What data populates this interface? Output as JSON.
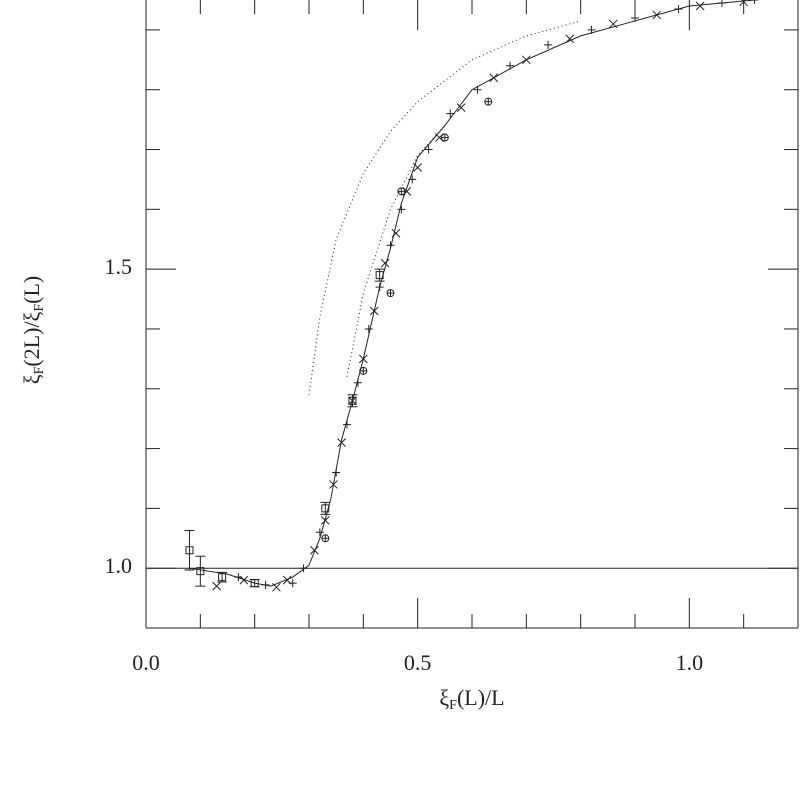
{
  "chart_data": {
    "type": "scatter",
    "xlabel": [
      "ξ",
      "F",
      "(L)/L"
    ],
    "ylabel": [
      "ξ",
      "F",
      "(2L)/ξ",
      "F",
      "(L)"
    ],
    "xlim": [
      0,
      1.2
    ],
    "ylim": [
      0.9,
      1.95
    ],
    "xticks": [
      {
        "value": 0,
        "label": "0.0"
      },
      {
        "value": 0.5,
        "label": "0.5"
      },
      {
        "value": 1,
        "label": "1.0"
      }
    ],
    "yticks": [
      {
        "value": 1,
        "label": "1.0"
      },
      {
        "value": 1.5,
        "label": "1.5"
      }
    ],
    "xminor": [
      0.1,
      0.2,
      0.3,
      0.4,
      0.6,
      0.7,
      0.8,
      0.9,
      1.1
    ],
    "yminor": [
      1.1,
      1.2,
      1.3,
      1.4,
      1.6,
      1.7,
      1.8,
      1.9
    ],
    "reference_line": 1,
    "color": "#222222",
    "series": [
      {
        "mode": "solid",
        "x": [
          0.08,
          0.15,
          0.2,
          0.23,
          0.27,
          0.3,
          0.32,
          0.34,
          0.36,
          0.38,
          0.4,
          0.43,
          0.45,
          0.47,
          0.5,
          0.55,
          0.6,
          0.65,
          0.7,
          0.8,
          0.9,
          1.0,
          1.12
        ],
        "values": [
          1.0,
          0.99,
          0.975,
          0.97,
          0.985,
          1.005,
          1.05,
          1.115,
          1.215,
          1.28,
          1.35,
          1.47,
          1.535,
          1.61,
          1.687,
          1.74,
          1.8,
          1.825,
          1.85,
          1.89,
          1.915,
          1.94,
          1.95
        ]
      },
      {
        "mode": "dotted",
        "x": [
          0.3,
          0.32,
          0.35,
          0.4,
          0.45,
          0.5,
          0.6,
          0.7,
          0.8
        ],
        "values": [
          1.29,
          1.42,
          1.55,
          1.66,
          1.73,
          1.78,
          1.85,
          1.89,
          1.915
        ]
      },
      {
        "mode": "dotted",
        "x": [
          0.37,
          0.4,
          0.45,
          0.5,
          0.55
        ],
        "values": [
          1.32,
          1.46,
          1.6,
          1.69,
          1.74
        ]
      },
      {
        "mode": "plus",
        "x": [
          0.17,
          0.22,
          0.27,
          0.29,
          0.32,
          0.35,
          0.37,
          0.39,
          0.41,
          0.43,
          0.45,
          0.47,
          0.49,
          0.52,
          0.56,
          0.61,
          0.67,
          0.74,
          0.82,
          0.9,
          0.98,
          1.06,
          1.12
        ],
        "values": [
          0.985,
          0.972,
          0.975,
          1.0,
          1.06,
          1.16,
          1.24,
          1.31,
          1.4,
          1.47,
          1.54,
          1.6,
          1.65,
          1.7,
          1.76,
          1.8,
          1.84,
          1.875,
          1.9,
          1.92,
          1.935,
          1.945,
          1.95
        ]
      },
      {
        "mode": "cross",
        "x": [
          0.13,
          0.18,
          0.24,
          0.26,
          0.31,
          0.33,
          0.345,
          0.36,
          0.38,
          0.4,
          0.42,
          0.44,
          0.46,
          0.48,
          0.5,
          0.54,
          0.58,
          0.64,
          0.7,
          0.78,
          0.86,
          0.94,
          1.02,
          1.1
        ],
        "values": [
          0.97,
          0.98,
          0.968,
          0.98,
          1.03,
          1.08,
          1.14,
          1.21,
          1.28,
          1.35,
          1.43,
          1.51,
          1.56,
          1.63,
          1.67,
          1.72,
          1.77,
          1.82,
          1.85,
          1.885,
          1.91,
          1.925,
          1.94,
          1.947
        ]
      },
      {
        "mode": "square",
        "x": [
          0.08,
          0.1,
          0.14,
          0.2,
          0.33,
          0.38,
          0.43
        ],
        "values": [
          1.03,
          0.995,
          0.985,
          0.975,
          1.1,
          1.28,
          1.49
        ],
        "errors": [
          0.033,
          0.025,
          0.008,
          0.006,
          0.01,
          0.01,
          0.01
        ]
      },
      {
        "mode": "circle",
        "x": [
          0.33,
          0.4,
          0.45,
          0.47,
          0.55,
          0.63
        ],
        "values": [
          1.05,
          1.33,
          1.46,
          1.63,
          1.72,
          1.78
        ]
      }
    ]
  }
}
